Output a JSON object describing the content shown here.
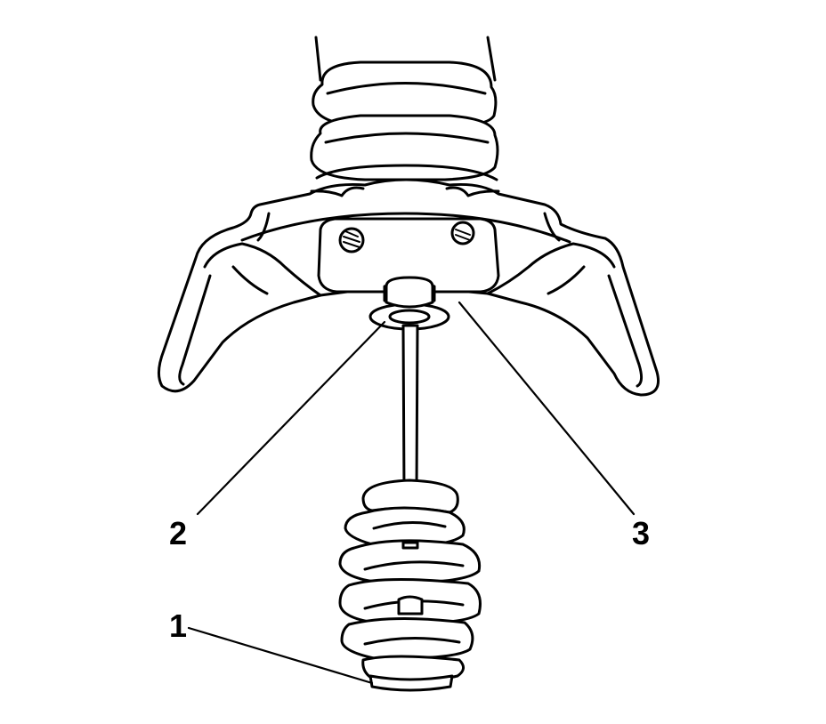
{
  "callouts": {
    "c1": "1",
    "c2": "2",
    "c3": "3"
  },
  "colors": {
    "line": "#000000",
    "background": "#ffffff"
  }
}
